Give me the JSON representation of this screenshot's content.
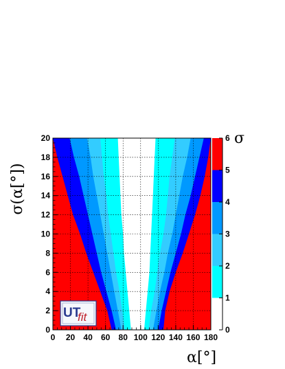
{
  "chart_data": {
    "type": "heatmap",
    "title": "",
    "xlabel": "α[°]",
    "ylabel": "σ(α[°])",
    "xlim": [
      0,
      180
    ],
    "ylim": [
      0,
      20
    ],
    "x_ticks": [
      "0",
      "20",
      "40",
      "60",
      "80",
      "100",
      "120",
      "140",
      "160",
      "180"
    ],
    "y_ticks": [
      "0",
      "2",
      "4",
      "6",
      "8",
      "10",
      "12",
      "14",
      "16",
      "18",
      "20"
    ],
    "grid": true,
    "colorbar": {
      "label": "σ",
      "ticks": [
        "0",
        "1",
        "2",
        "3",
        "4",
        "5",
        "6"
      ],
      "bands": [
        {
          "range": [
            0,
            1
          ],
          "color": "#ffffff"
        },
        {
          "range": [
            1,
            2
          ],
          "color": "#00ffff"
        },
        {
          "range": [
            2,
            3
          ],
          "color": "#33ccff"
        },
        {
          "range": [
            3,
            4
          ],
          "color": "#0099ff"
        },
        {
          "range": [
            4,
            5
          ],
          "color": "#0000ff"
        },
        {
          "range": [
            5,
            6
          ],
          "color": "#ff0000"
        }
      ]
    },
    "contours": {
      "sigma_levels": [
        1,
        2,
        3,
        4,
        5
      ],
      "y_samples": [
        0,
        2,
        4,
        6,
        8,
        10,
        12,
        14,
        16,
        18,
        20
      ],
      "left_boundaries": [
        [
          89,
          87,
          85,
          83,
          81,
          80,
          78,
          77,
          76,
          75,
          74
        ],
        [
          82,
          79,
          76,
          72,
          69,
          66,
          63,
          61,
          58,
          56,
          54
        ],
        [
          78,
          74,
          70,
          66,
          62,
          58,
          54,
          50,
          46,
          43,
          39
        ],
        [
          72,
          67,
          61,
          55,
          50,
          45,
          40,
          35,
          30,
          24,
          19
        ],
        [
          67,
          62,
          54,
          46,
          38,
          31,
          23,
          17,
          11,
          5,
          0
        ]
      ],
      "right_boundaries": [
        [
          104,
          106,
          108,
          110,
          111,
          112,
          113,
          114,
          115,
          116,
          117
        ],
        [
          109,
          112,
          116,
          119,
          122,
          126,
          129,
          131,
          133,
          136,
          139
        ],
        [
          114,
          118,
          122,
          127,
          131,
          136,
          140,
          144,
          148,
          153,
          157
        ],
        [
          120,
          124,
          129,
          134,
          140,
          146,
          151,
          157,
          162,
          167,
          172
        ],
        [
          126,
          128,
          133,
          140,
          148,
          155,
          162,
          168,
          173,
          177,
          180
        ]
      ]
    }
  },
  "logo": {
    "part1": "UT",
    "part2": "fit"
  }
}
